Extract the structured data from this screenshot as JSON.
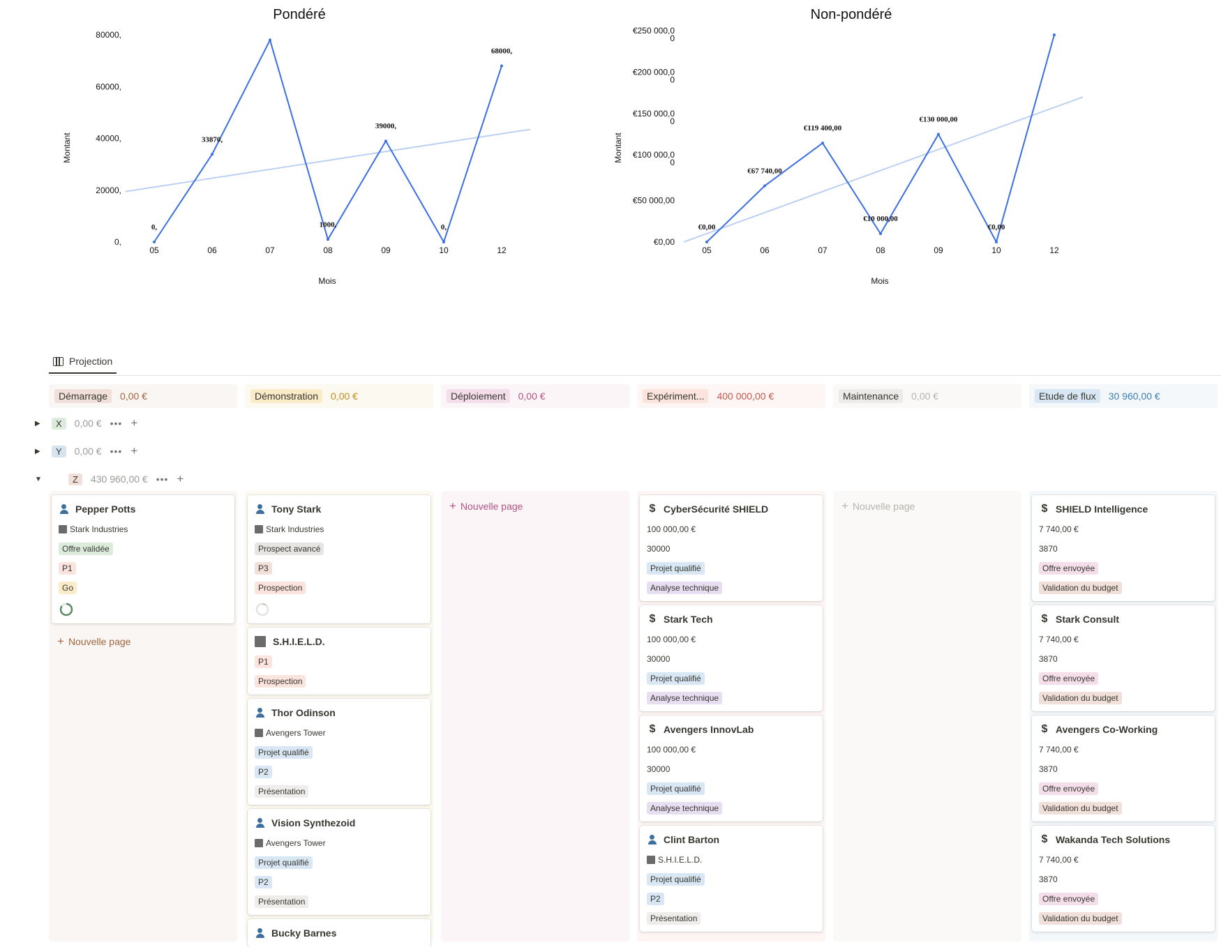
{
  "chart_data": [
    {
      "type": "line",
      "title": "Pondéré",
      "xlabel": "Mois",
      "ylabel": "Montant",
      "categories": [
        "05",
        "06",
        "07",
        "08",
        "09",
        "10",
        "12"
      ],
      "series": [
        {
          "values": [
            0,
            33870,
            78000,
            1000,
            39000,
            0,
            68000
          ]
        }
      ],
      "data_labels": [
        "0,",
        "33870,",
        "",
        "1000,",
        "39000,",
        "0,",
        "68000,"
      ],
      "ytick_labels": [
        "0,",
        "20000,",
        "40000,",
        "60000,",
        "80000,"
      ],
      "ytick_values": [
        0,
        20000,
        40000,
        60000,
        80000
      ],
      "ylim": [
        0,
        80000
      ],
      "trendline": {
        "start": 19500,
        "end": 43500,
        "x_start": "04.5",
        "x_end": "12.5"
      },
      "grid": false
    },
    {
      "type": "line",
      "title": "Non-pondéré",
      "xlabel": "Mois",
      "ylabel": "Montant",
      "categories": [
        "05",
        "06",
        "07",
        "08",
        "09",
        "10",
        "12"
      ],
      "series": [
        {
          "values": [
            0,
            67740,
            119400,
            10000,
            130000,
            0,
            250000
          ]
        }
      ],
      "data_labels": [
        "€0,00",
        "€67 740,00",
        "€119 400,00",
        "€10 000,00",
        "€130 000,00",
        "€0,00",
        ""
      ],
      "ytick_labels": [
        [
          "€0,00"
        ],
        [
          "€50 000,00"
        ],
        [
          "€100 000,0",
          "0"
        ],
        [
          "€150 000,0",
          "0"
        ],
        [
          "€200 000,0",
          "0"
        ],
        [
          "€250 000,0",
          "0"
        ]
      ],
      "ytick_values": [
        0,
        50000,
        100000,
        150000,
        200000,
        250000
      ],
      "ylim": [
        0,
        250000
      ],
      "trendline": {
        "start": 0,
        "end": 175000
      },
      "grid": false
    }
  ],
  "tabs": [
    {
      "label": "Projection"
    }
  ],
  "columns": [
    {
      "name": "Démarrage",
      "total": "0,00 €",
      "tag_bg": "#f0e0d9",
      "total_color": "#a0653b",
      "bg": "#faf6f4"
    },
    {
      "name": "Démonstration",
      "total": "0,00 €",
      "tag_bg": "#fbecc9",
      "total_color": "#c28b1a",
      "bg": "#fcf9f1"
    },
    {
      "name": "Déploiement",
      "total": "0,00 €",
      "tag_bg": "#f4deea",
      "total_color": "#b4527f",
      "bg": "#fbf5f8"
    },
    {
      "name": "Expériment...",
      "total": "400 000,00 €",
      "tag_bg": "#fbe3de",
      "total_color": "#c4574a",
      "bg": "#fdf6f4"
    },
    {
      "name": "Maintenance",
      "total": "0,00 €",
      "tag_bg": "#ecebe9",
      "total_color": "#b4b3af",
      "bg": "#faf9f7"
    },
    {
      "name": "Etude de flux",
      "total": "30 960,00 €",
      "tag_bg": "#d8e7f3",
      "total_color": "#3b7eb6",
      "bg": "#f4f8fb"
    }
  ],
  "groups": [
    {
      "name": "X",
      "total": "0,00 €",
      "tag_bg": "#dcecdc",
      "expanded": false
    },
    {
      "name": "Y",
      "total": "0,00 €",
      "tag_bg": "#d6e4ef",
      "expanded": false
    },
    {
      "name": "Z",
      "total": "430 960,00 €",
      "tag_bg": "#f0e0d9",
      "expanded": true
    }
  ],
  "icons": {
    "collapsed": "▶",
    "expanded": "▼",
    "more": "•••",
    "add": "+"
  },
  "new_page_label": "Nouvelle page",
  "cards": {
    "col0": [
      {
        "icon": "person",
        "title": "Pepper Potts",
        "company": "Stark Industries",
        "tags": [
          {
            "text": "Offre validée",
            "bg": "#dcecdc"
          },
          {
            "text": "P1",
            "bg": "#fbe3de"
          },
          {
            "text": "Go",
            "bg": "#fbecc9"
          }
        ],
        "progress": 0.85
      }
    ],
    "col1": [
      {
        "icon": "person",
        "title": "Tony Stark",
        "company": "Stark Industries",
        "tags": [
          {
            "text": "Prospect avancé",
            "bg": "#e6e5e3"
          },
          {
            "text": "P3",
            "bg": "#f0e0d9"
          },
          {
            "text": "Prospection",
            "bg": "#fbe3de"
          }
        ],
        "progress": 0.1
      },
      {
        "icon": "building",
        "title": "S.H.I.E.L.D.",
        "tags": [
          {
            "text": "P1",
            "bg": "#fbe3de"
          },
          {
            "text": "Prospection",
            "bg": "#fbe3de"
          }
        ]
      },
      {
        "icon": "person",
        "title": "Thor Odinson",
        "company": "Avengers Tower",
        "tags": [
          {
            "text": "Projet qualifié",
            "bg": "#d8e7f3"
          },
          {
            "text": "P2",
            "bg": "#d8e7f3"
          },
          {
            "text": "Présentation",
            "bg": "#eeedeb"
          }
        ]
      },
      {
        "icon": "person",
        "title": "Vision Synthezoid",
        "company": "Avengers Tower",
        "tags": [
          {
            "text": "Projet qualifié",
            "bg": "#d8e7f3"
          },
          {
            "text": "P2",
            "bg": "#d8e7f3"
          },
          {
            "text": "Présentation",
            "bg": "#eeedeb"
          }
        ]
      },
      {
        "icon": "person",
        "title": "Bucky Barnes",
        "tags": []
      }
    ],
    "col3": [
      {
        "icon": "dollar",
        "title": "CyberSécurité SHIELD",
        "amount": "100 000,00 €",
        "weighted": "30000",
        "tags": [
          {
            "text": "Projet qualifié",
            "bg": "#d8e7f3"
          },
          {
            "text": "Analyse technique",
            "bg": "#e8def2"
          }
        ]
      },
      {
        "icon": "dollar",
        "title": "Stark Tech",
        "amount": "100 000,00 €",
        "weighted": "30000",
        "tags": [
          {
            "text": "Projet qualifié",
            "bg": "#d8e7f3"
          },
          {
            "text": "Analyse technique",
            "bg": "#e8def2"
          }
        ]
      },
      {
        "icon": "dollar",
        "title": "Avengers InnovLab",
        "amount": "100 000,00 €",
        "weighted": "30000",
        "tags": [
          {
            "text": "Projet qualifié",
            "bg": "#d8e7f3"
          },
          {
            "text": "Analyse technique",
            "bg": "#e8def2"
          }
        ]
      },
      {
        "icon": "person",
        "title": "Clint Barton",
        "company": "S.H.I.E.L.D.",
        "tags": [
          {
            "text": "Projet qualifié",
            "bg": "#d8e7f3"
          },
          {
            "text": "P2",
            "bg": "#d8e7f3"
          },
          {
            "text": "Présentation",
            "bg": "#eeedeb"
          }
        ]
      }
    ],
    "col5": [
      {
        "icon": "dollar",
        "title": "SHIELD Intelligence",
        "amount": "7 740,00 €",
        "weighted": "3870",
        "tags": [
          {
            "text": "Offre envoyée",
            "bg": "#f4deea"
          },
          {
            "text": "Validation du budget",
            "bg": "#f0e0d9"
          }
        ]
      },
      {
        "icon": "dollar",
        "title": "Stark Consult",
        "amount": "7 740,00 €",
        "weighted": "3870",
        "tags": [
          {
            "text": "Offre envoyée",
            "bg": "#f4deea"
          },
          {
            "text": "Validation du budget",
            "bg": "#f0e0d9"
          }
        ]
      },
      {
        "icon": "dollar",
        "title": "Avengers Co-Working",
        "amount": "7 740,00 €",
        "weighted": "3870",
        "tags": [
          {
            "text": "Offre envoyée",
            "bg": "#f4deea"
          },
          {
            "text": "Validation du budget",
            "bg": "#f0e0d9"
          }
        ]
      },
      {
        "icon": "dollar",
        "title": "Wakanda Tech Solutions",
        "amount": "7 740,00 €",
        "weighted": "3870",
        "tags": [
          {
            "text": "Offre envoyée",
            "bg": "#f4deea"
          },
          {
            "text": "Validation du budget",
            "bg": "#f0e0d9"
          }
        ]
      }
    ]
  },
  "colors": {
    "line": "#3b6fe0",
    "trend": "#b7ccf3",
    "new_page_col0": "#a0653b",
    "new_page_col2": "#b4527f",
    "new_page_col4": "#b4b3af",
    "progress_green": "#5a8a62",
    "progress_grey": "#c9c8c5"
  }
}
